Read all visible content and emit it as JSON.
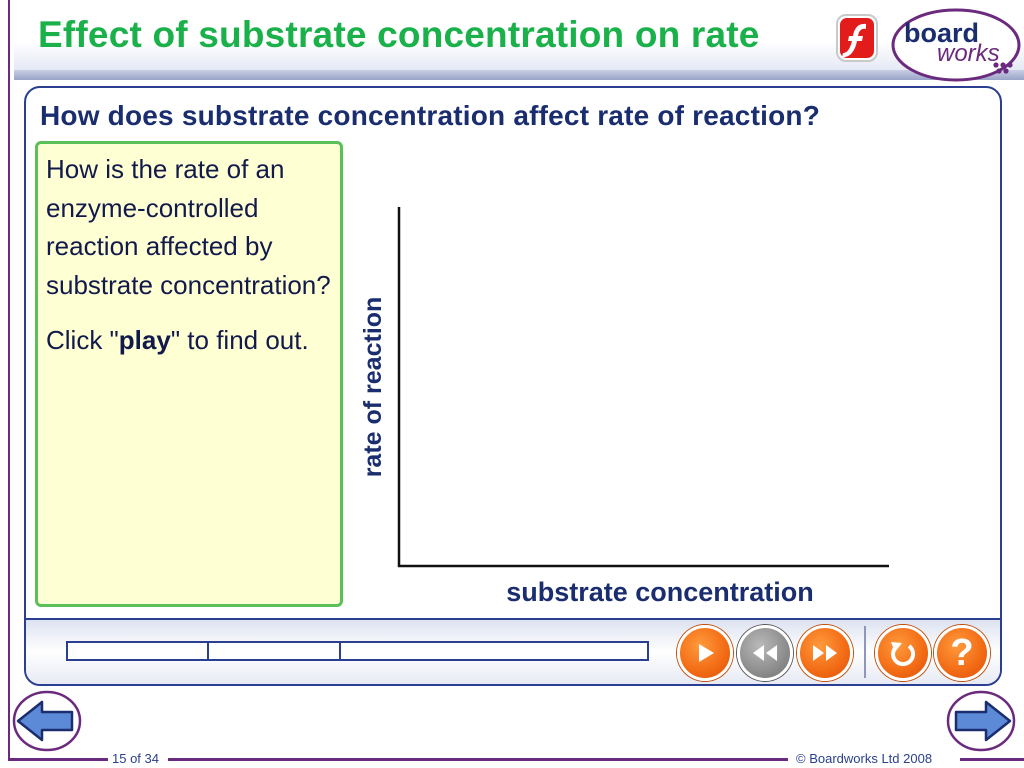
{
  "header": {
    "title": "Effect of substrate concentration on rate",
    "flash_icon": "flash-player-icon",
    "logo": {
      "line1": "board",
      "line2": "works"
    }
  },
  "panel": {
    "question": "How does substrate concentration affect rate of reaction?",
    "info": {
      "paragraph1": "How is the rate of an enzyme-controlled reaction affected by substrate concentration?",
      "click_prefix": "Click \"",
      "click_bold": "play",
      "click_suffix": "\" to find out."
    },
    "graph": {
      "ylabel": "rate of reaction",
      "xlabel": "substrate concentration"
    }
  },
  "controls": {
    "progress_segments": 3,
    "buttons": [
      {
        "name": "play-button",
        "icon": "play-icon"
      },
      {
        "name": "rewind-button",
        "icon": "rewind-icon"
      },
      {
        "name": "fast-forward-button",
        "icon": "fast-forward-icon"
      },
      {
        "name": "reset-button",
        "icon": "reset-icon"
      },
      {
        "name": "help-button",
        "icon": "help-icon",
        "label": "?"
      }
    ]
  },
  "footer": {
    "page": "15 of 34",
    "copyright": "© Boardworks Ltd 2008"
  },
  "colors": {
    "title_green": "#1ab04a",
    "navy": "#1a2d6e",
    "accent_orange": "#f26a14",
    "info_bg": "#ffffd4",
    "info_border": "#5cc05a",
    "logo_purple": "#6b2a7e"
  }
}
